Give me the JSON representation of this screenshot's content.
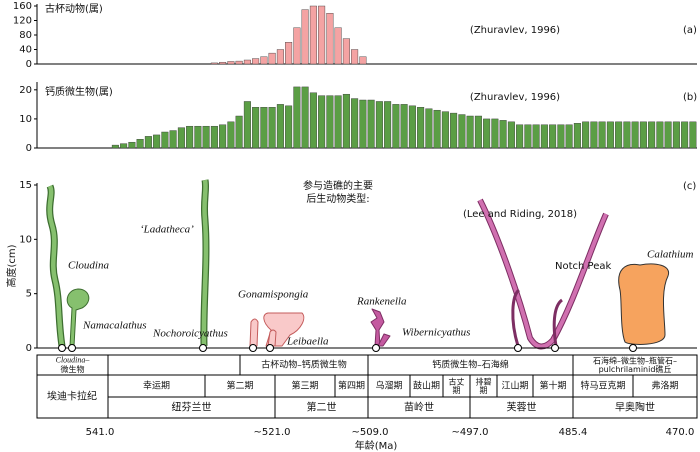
{
  "chart_data": [
    {
      "type": "bar",
      "label": "古杯动物(属)",
      "source": "(Zhuravlev, 1996)",
      "panel": "(a)",
      "color": "#f4a3a3",
      "categories": [
        null,
        null,
        null,
        null,
        null,
        null,
        null,
        null,
        null,
        null,
        null,
        null,
        null,
        null,
        null,
        null,
        null,
        null,
        null,
        null,
        null,
        null,
        null,
        null,
        null,
        null,
        null,
        null,
        null,
        null,
        null,
        null,
        null,
        null,
        null,
        null,
        null,
        null,
        null,
        null,
        null,
        null,
        null,
        null,
        null,
        null,
        null,
        null,
        null,
        null,
        null,
        null,
        null,
        null,
        null,
        null,
        null,
        null,
        null,
        null,
        null,
        null,
        null,
        null,
        null,
        null,
        null,
        null,
        null,
        null,
        null,
        null,
        null,
        null,
        null,
        null,
        null,
        null,
        null,
        null
      ],
      "values": [
        0,
        0,
        0,
        0,
        0,
        0,
        0,
        0,
        0,
        0,
        0,
        0,
        0,
        0,
        0,
        0,
        0,
        0,
        0,
        0,
        0,
        3,
        5,
        7,
        8,
        11,
        15,
        20,
        30,
        40,
        60,
        100,
        150,
        160,
        160,
        140,
        100,
        70,
        40,
        20,
        0,
        0,
        0,
        0,
        0,
        0,
        0,
        0,
        0,
        0,
        0,
        0,
        0,
        0,
        0,
        0,
        0,
        0,
        0,
        0,
        0,
        0,
        0,
        0,
        0,
        0,
        0,
        0,
        0,
        0,
        0,
        0,
        0,
        0,
        0,
        0,
        0,
        0,
        0,
        0
      ],
      "ylim": [
        0,
        160
      ],
      "yticks": [
        0,
        40,
        80,
        120,
        160
      ]
    },
    {
      "type": "bar",
      "label": "钙质微生物(属)",
      "source": "(Zhuravlev, 1996)",
      "panel": "(b)",
      "color": "#5b9e45",
      "categories": [
        null,
        null,
        null,
        null,
        null,
        null,
        null,
        null,
        null,
        null,
        null,
        null,
        null,
        null,
        null,
        null,
        null,
        null,
        null,
        null,
        null,
        null,
        null,
        null,
        null,
        null,
        null,
        null,
        null,
        null,
        null,
        null,
        null,
        null,
        null,
        null,
        null,
        null,
        null,
        null,
        null,
        null,
        null,
        null,
        null,
        null,
        null,
        null,
        null,
        null,
        null,
        null,
        null,
        null,
        null,
        null,
        null,
        null,
        null,
        null,
        null,
        null,
        null,
        null,
        null,
        null,
        null,
        null,
        null,
        null,
        null,
        null,
        null,
        null,
        null,
        null,
        null,
        null,
        null,
        null
      ],
      "values": [
        0,
        0,
        0,
        0,
        0,
        0,
        0,
        0,
        0,
        1,
        1.5,
        2,
        3,
        4,
        4.5,
        5.5,
        6,
        7,
        7.5,
        7.5,
        7.5,
        7.5,
        8,
        9,
        11,
        16,
        14,
        14,
        14,
        15,
        14.5,
        21,
        21,
        19,
        18,
        18,
        18,
        18.5,
        17,
        16.5,
        16.5,
        16,
        16,
        15,
        15,
        14.5,
        14,
        13.5,
        13,
        12.5,
        12,
        11.5,
        11,
        11,
        10,
        10,
        9.5,
        9,
        8,
        8,
        8,
        8,
        8,
        8,
        8,
        8.5,
        9,
        9,
        9,
        9,
        9,
        9,
        9,
        9,
        9,
        9,
        9,
        9,
        9,
        9
      ],
      "ylim": [
        0,
        22
      ],
      "yticks": [
        0,
        10,
        20
      ]
    },
    {
      "type": "illustration",
      "panel": "(c)",
      "ylabel": "高度(cm)",
      "source": "(Lee and Riding, 2018)",
      "annotation": [
        "参与造礁的主要",
        "后生动物类型:"
      ],
      "organisms": [
        "Cloudina",
        "Namacalathus",
        "‘Ladatheca’",
        "Nochoroicyathus",
        "Gonamispongia",
        "Leibaella",
        "Rankenella",
        "Wibernicyathus",
        "Notch Peak",
        "Calathium"
      ],
      "ylim": [
        0,
        15
      ],
      "yticks": [
        0,
        5,
        10,
        15
      ]
    }
  ],
  "timescale": {
    "reef_types": [
      [
        "Cloudina–",
        "微生物"
      ],
      [
        "古杯动物–钙质微生物"
      ],
      [
        "钙质微生物–石海绵"
      ],
      [
        "石海绵–微生物–瓶管石–",
        "pulchrilaminid礁丘"
      ]
    ],
    "period": "埃迪卡拉纪",
    "stages": [
      [
        "幸运期"
      ],
      [
        "第二期"
      ],
      [
        "第三期"
      ],
      [
        "第四期"
      ],
      [
        "乌溜期"
      ],
      [
        "鼓山期"
      ],
      [
        "古丈",
        "期"
      ],
      [
        "排碧",
        "期"
      ],
      [
        "江山期"
      ],
      [
        "第十期"
      ],
      [
        "特马豆克期"
      ],
      [
        "弗洛期"
      ]
    ],
    "series": [
      "纽芬兰世",
      "第二世",
      "苗岭世",
      "芙蓉世",
      "早奥陶世"
    ],
    "ages": [
      "541.0",
      "~521.0",
      "~509.0",
      "~497.0",
      "485.4",
      "470.0"
    ],
    "xlabel": "年龄(Ma)"
  }
}
